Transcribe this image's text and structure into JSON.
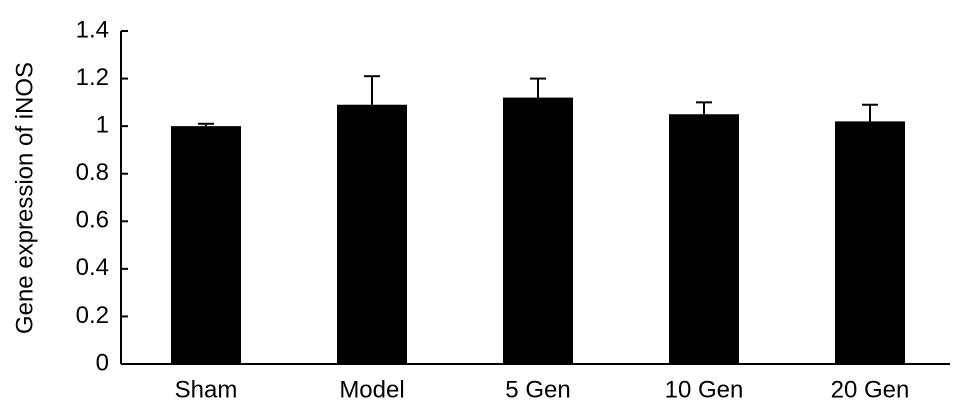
{
  "chart_data": {
    "type": "bar",
    "y_label": "Gene expression of iNOS",
    "categories": [
      "Sham",
      "Model",
      "5 Gen",
      "10 Gen",
      "20 Gen"
    ],
    "values": [
      1.0,
      1.09,
      1.12,
      1.05,
      1.02
    ],
    "errors": [
      0.01,
      0.12,
      0.08,
      0.05,
      0.07
    ],
    "color": "#000000",
    "ylim": [
      0,
      1.4
    ],
    "yticks": [
      0,
      0.2,
      0.4,
      0.6,
      0.8,
      1,
      1.2,
      1.4
    ],
    "grid": false
  }
}
